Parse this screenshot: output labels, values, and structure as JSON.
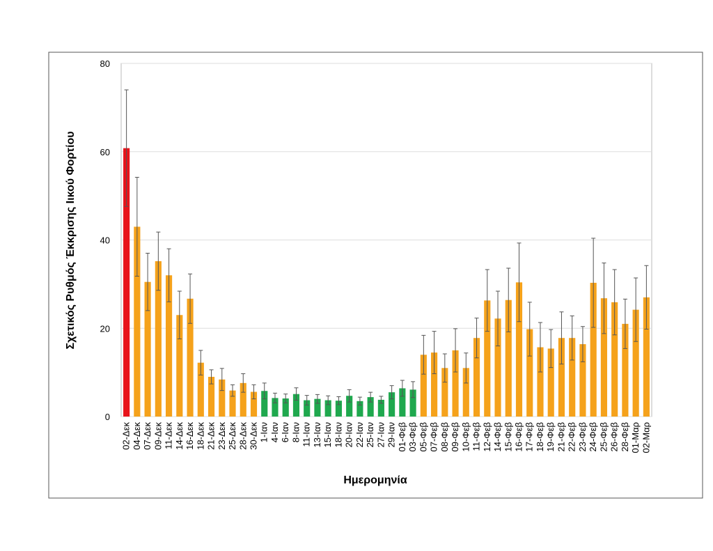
{
  "chart_data": {
    "type": "bar",
    "x_label": "Ημερομηνία",
    "y_label": "Σχετικός Ρυθμός Έκκρισης Ιικού Φορτίου",
    "categories": [
      "02-Δεκ",
      "04-Δεκ",
      "07-Δεκ",
      "09-Δεκ",
      "11-Δεκ",
      "14-Δεκ",
      "16-Δεκ",
      "18-Δεκ",
      "21-Δεκ",
      "23-Δεκ",
      "25-Δεκ",
      "28-Δεκ",
      "30-Δεκ",
      "1-Ιαν",
      "4-Ιαν",
      "6-Ιαν",
      "8-Ιαν",
      "11-Ιαν",
      "13-Ιαν",
      "15-Ιαν",
      "18-Ιαν",
      "20-Ιαν",
      "22-Ιαν",
      "25-Ιαν",
      "27-Ιαν",
      "29-Ιαν",
      "01-Φεβ",
      "03-Φεβ",
      "05-Φεβ",
      "07-Φεβ",
      "08-Φεβ",
      "09-Φεβ",
      "10-Φεβ",
      "11-Φεβ",
      "12-Φεβ",
      "14-Φεβ",
      "15-Φεβ",
      "16-Φεβ",
      "17-Φεβ",
      "18-Φεβ",
      "19-Φεβ",
      "21-Φεβ",
      "22-Φεβ",
      "23-Φεβ",
      "24-Φεβ",
      "25-Φεβ",
      "26-Φεβ",
      "28-Φεβ",
      "01-Μαρ",
      "02-Μαρ"
    ],
    "values": [
      60.8,
      43,
      30.5,
      35.2,
      32,
      23,
      26.7,
      12.2,
      9,
      8.4,
      5.9,
      7.6,
      5.6,
      5.8,
      4.2,
      4.1,
      5.1,
      3.7,
      4,
      3.7,
      3.6,
      4.7,
      3.5,
      4.4,
      3.8,
      5.5,
      6.4,
      6.1,
      14,
      14.5,
      11,
      15,
      11,
      17.8,
      26.3,
      22.2,
      26.4,
      30.4,
      19.8,
      15.7,
      15.4,
      17.8,
      17.8,
      16.4,
      30.3,
      26.8,
      25.9,
      21,
      24.2,
      27
    ],
    "errors": [
      13.2,
      11.2,
      6.5,
      6.6,
      6,
      5.4,
      5.6,
      2.8,
      1.6,
      2.5,
      1.3,
      2.1,
      1.6,
      1.8,
      1.1,
      1,
      1.4,
      1.1,
      1,
      1,
      0.9,
      1.4,
      0.9,
      1.1,
      0.8,
      1.5,
      1.8,
      1.8,
      4.4,
      4.8,
      3.2,
      4.9,
      3.4,
      4.5,
      7,
      6.2,
      7.2,
      8.9,
      6.1,
      5.6,
      4.3,
      5.9,
      5,
      4,
      10.1,
      8,
      7.4,
      5.6,
      7.2,
      7.2
    ],
    "colors": [
      "#e8141b",
      "#f5a21b",
      "#f5a21b",
      "#f5a21b",
      "#f5a21b",
      "#f5a21b",
      "#f5a21b",
      "#f5a21b",
      "#f5a21b",
      "#f5a21b",
      "#f5a21b",
      "#f5a21b",
      "#f5a21b",
      "#1fa84e",
      "#1fa84e",
      "#1fa84e",
      "#1fa84e",
      "#1fa84e",
      "#1fa84e",
      "#1fa84e",
      "#1fa84e",
      "#1fa84e",
      "#1fa84e",
      "#1fa84e",
      "#1fa84e",
      "#1fa84e",
      "#1fa84e",
      "#1fa84e",
      "#f5a21b",
      "#f5a21b",
      "#f5a21b",
      "#f5a21b",
      "#f5a21b",
      "#f5a21b",
      "#f5a21b",
      "#f5a21b",
      "#f5a21b",
      "#f5a21b",
      "#f5a21b",
      "#f5a21b",
      "#f5a21b",
      "#f5a21b",
      "#f5a21b",
      "#f5a21b",
      "#f5a21b",
      "#f5a21b",
      "#f5a21b",
      "#f5a21b",
      "#f5a21b",
      "#f5a21b"
    ],
    "ylim": [
      0,
      80
    ],
    "yticks": [
      0,
      20,
      40,
      60,
      80
    ],
    "grid": true
  }
}
